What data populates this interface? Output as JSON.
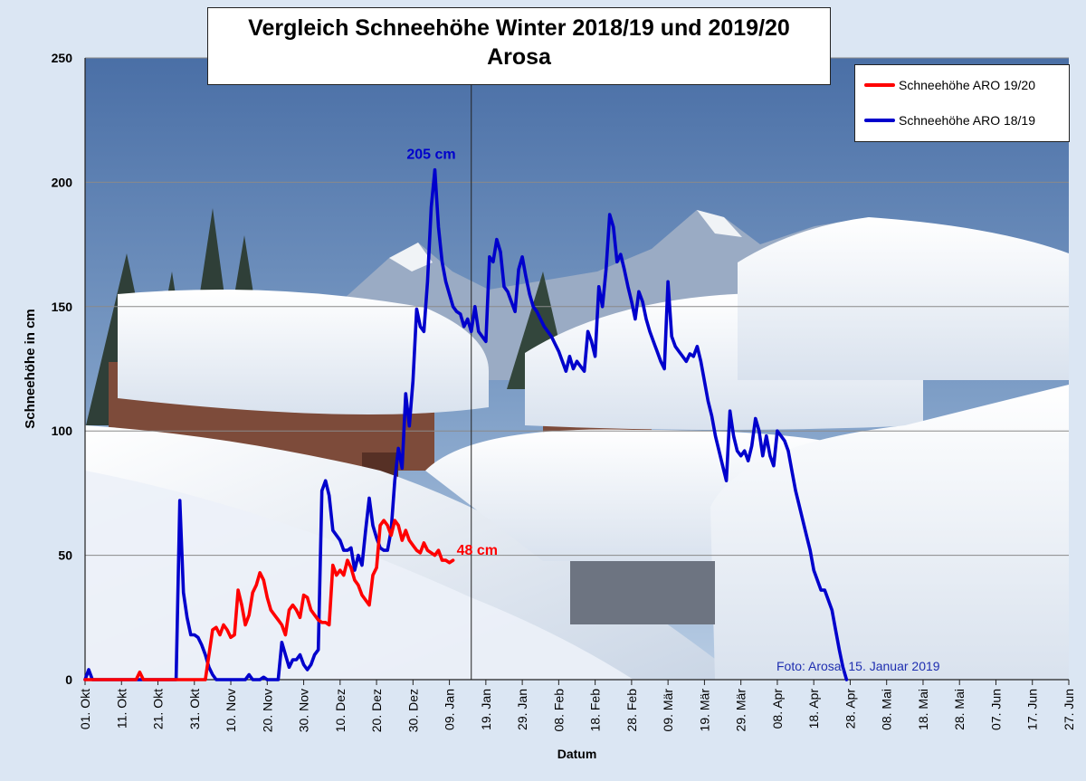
{
  "chart_data": {
    "type": "line",
    "title_lines": [
      "Vergleich Schneehöhe Winter 2018/19 und 2019/20",
      "Arosa"
    ],
    "xlabel": "Datum",
    "ylabel": "Schneehöhe in cm",
    "ylim": [
      0,
      250
    ],
    "yticks": [
      0,
      50,
      100,
      150,
      200,
      250
    ],
    "x_domain_days": [
      0,
      240
    ],
    "x_ticks": [
      {
        "day": 0,
        "label": "01. Okt"
      },
      {
        "day": 10,
        "label": "11. Okt"
      },
      {
        "day": 20,
        "label": "21. Okt"
      },
      {
        "day": 30,
        "label": "31. Okt"
      },
      {
        "day": 40,
        "label": "10. Nov"
      },
      {
        "day": 50,
        "label": "20. Nov"
      },
      {
        "day": 60,
        "label": "30. Nov"
      },
      {
        "day": 70,
        "label": "10. Dez"
      },
      {
        "day": 80,
        "label": "20. Dez"
      },
      {
        "day": 90,
        "label": "30. Dez"
      },
      {
        "day": 100,
        "label": "09. Jan"
      },
      {
        "day": 110,
        "label": "19. Jan"
      },
      {
        "day": 120,
        "label": "29. Jan"
      },
      {
        "day": 130,
        "label": "08. Feb"
      },
      {
        "day": 140,
        "label": "18. Feb"
      },
      {
        "day": 150,
        "label": "28. Feb"
      },
      {
        "day": 160,
        "label": "09. Mär"
      },
      {
        "day": 170,
        "label": "19. Mär"
      },
      {
        "day": 180,
        "label": "29. Mär"
      },
      {
        "day": 190,
        "label": "08. Apr"
      },
      {
        "day": 200,
        "label": "18. Apr"
      },
      {
        "day": 210,
        "label": "28. Apr"
      },
      {
        "day": 220,
        "label": "08. Mai"
      },
      {
        "day": 230,
        "label": "18. Mai"
      },
      {
        "day": 240,
        "label": "28. Mai"
      },
      {
        "day": 250,
        "label": "07. Jun"
      },
      {
        "day": 260,
        "label": "17. Jun"
      },
      {
        "day": 270,
        "label": "27. Jun"
      }
    ],
    "x_range_days": [
      0,
      270
    ],
    "reference_line_day": 106,
    "series": [
      {
        "name": "Schneehöhe ARO 19/20",
        "color": "#ff0000",
        "points": [
          [
            0,
            0
          ],
          [
            14,
            0
          ],
          [
            15,
            3
          ],
          [
            16,
            0
          ],
          [
            26,
            0
          ],
          [
            33,
            0
          ],
          [
            34,
            10
          ],
          [
            35,
            20
          ],
          [
            36,
            21
          ],
          [
            37,
            18
          ],
          [
            38,
            22
          ],
          [
            39,
            20
          ],
          [
            40,
            17
          ],
          [
            41,
            18
          ],
          [
            42,
            36
          ],
          [
            43,
            30
          ],
          [
            44,
            22
          ],
          [
            45,
            26
          ],
          [
            46,
            35
          ],
          [
            47,
            38
          ],
          [
            48,
            43
          ],
          [
            49,
            40
          ],
          [
            50,
            33
          ],
          [
            51,
            28
          ],
          [
            52,
            26
          ],
          [
            53,
            24
          ],
          [
            54,
            22
          ],
          [
            55,
            18
          ],
          [
            56,
            28
          ],
          [
            57,
            30
          ],
          [
            58,
            28
          ],
          [
            59,
            25
          ],
          [
            60,
            34
          ],
          [
            61,
            33
          ],
          [
            62,
            28
          ],
          [
            63,
            26
          ],
          [
            64,
            24
          ],
          [
            65,
            23
          ],
          [
            66,
            23
          ],
          [
            67,
            22
          ],
          [
            68,
            46
          ],
          [
            69,
            42
          ],
          [
            70,
            44
          ],
          [
            71,
            42
          ],
          [
            72,
            48
          ],
          [
            73,
            45
          ],
          [
            74,
            40
          ],
          [
            75,
            38
          ],
          [
            76,
            34
          ],
          [
            77,
            32
          ],
          [
            78,
            30
          ],
          [
            79,
            42
          ],
          [
            80,
            45
          ],
          [
            81,
            62
          ],
          [
            82,
            64
          ],
          [
            83,
            62
          ],
          [
            84,
            58
          ],
          [
            85,
            64
          ],
          [
            86,
            62
          ],
          [
            87,
            56
          ],
          [
            88,
            60
          ],
          [
            89,
            56
          ],
          [
            90,
            54
          ],
          [
            91,
            52
          ],
          [
            92,
            51
          ],
          [
            93,
            55
          ],
          [
            94,
            52
          ],
          [
            95,
            51
          ],
          [
            96,
            50
          ],
          [
            97,
            52
          ],
          [
            98,
            48
          ],
          [
            99,
            48
          ],
          [
            100,
            47
          ],
          [
            101,
            48
          ]
        ],
        "annotation": "48 cm"
      },
      {
        "name": "Schneehöhe ARO 18/19",
        "color": "#0000cc",
        "points": [
          [
            0,
            0
          ],
          [
            1,
            4
          ],
          [
            2,
            0
          ],
          [
            25,
            0
          ],
          [
            26,
            72
          ],
          [
            27,
            35
          ],
          [
            28,
            25
          ],
          [
            29,
            18
          ],
          [
            30,
            18
          ],
          [
            31,
            17
          ],
          [
            32,
            14
          ],
          [
            33,
            10
          ],
          [
            34,
            5
          ],
          [
            35,
            2
          ],
          [
            36,
            0
          ],
          [
            44,
            0
          ],
          [
            45,
            2
          ],
          [
            46,
            0
          ],
          [
            48,
            0
          ],
          [
            49,
            1
          ],
          [
            50,
            0
          ],
          [
            53,
            0
          ],
          [
            54,
            15
          ],
          [
            55,
            10
          ],
          [
            56,
            5
          ],
          [
            57,
            8
          ],
          [
            58,
            8
          ],
          [
            59,
            10
          ],
          [
            60,
            6
          ],
          [
            61,
            4
          ],
          [
            62,
            6
          ],
          [
            63,
            10
          ],
          [
            64,
            12
          ],
          [
            65,
            76
          ],
          [
            66,
            80
          ],
          [
            67,
            74
          ],
          [
            68,
            60
          ],
          [
            69,
            58
          ],
          [
            70,
            56
          ],
          [
            71,
            52
          ],
          [
            72,
            52
          ],
          [
            73,
            53
          ],
          [
            74,
            44
          ],
          [
            75,
            50
          ],
          [
            76,
            46
          ],
          [
            77,
            60
          ],
          [
            78,
            73
          ],
          [
            79,
            62
          ],
          [
            80,
            57
          ],
          [
            81,
            53
          ],
          [
            82,
            52
          ],
          [
            83,
            52
          ],
          [
            84,
            60
          ],
          [
            85,
            80
          ],
          [
            86,
            93
          ],
          [
            87,
            85
          ],
          [
            88,
            115
          ],
          [
            89,
            102
          ],
          [
            90,
            120
          ],
          [
            91,
            149
          ],
          [
            92,
            142
          ],
          [
            93,
            140
          ],
          [
            94,
            160
          ],
          [
            95,
            190
          ],
          [
            96,
            205
          ],
          [
            97,
            182
          ],
          [
            98,
            168
          ],
          [
            99,
            160
          ],
          [
            100,
            155
          ],
          [
            101,
            150
          ],
          [
            102,
            148
          ],
          [
            103,
            147
          ],
          [
            104,
            142
          ],
          [
            105,
            145
          ],
          [
            106,
            140
          ],
          [
            107,
            150
          ],
          [
            108,
            140
          ],
          [
            109,
            138
          ],
          [
            110,
            136
          ],
          [
            111,
            170
          ],
          [
            112,
            168
          ],
          [
            113,
            177
          ],
          [
            114,
            172
          ],
          [
            115,
            158
          ],
          [
            116,
            156
          ],
          [
            117,
            152
          ],
          [
            118,
            148
          ],
          [
            119,
            165
          ],
          [
            120,
            170
          ],
          [
            121,
            162
          ],
          [
            122,
            155
          ],
          [
            123,
            150
          ],
          [
            124,
            148
          ],
          [
            125,
            145
          ],
          [
            126,
            142
          ],
          [
            127,
            140
          ],
          [
            128,
            138
          ],
          [
            129,
            135
          ],
          [
            130,
            132
          ],
          [
            131,
            128
          ],
          [
            132,
            124
          ],
          [
            133,
            130
          ],
          [
            134,
            125
          ],
          [
            135,
            128
          ],
          [
            136,
            126
          ],
          [
            137,
            124
          ],
          [
            138,
            140
          ],
          [
            139,
            136
          ],
          [
            140,
            130
          ],
          [
            141,
            158
          ],
          [
            142,
            150
          ],
          [
            143,
            165
          ],
          [
            144,
            187
          ],
          [
            145,
            182
          ],
          [
            146,
            168
          ],
          [
            147,
            171
          ],
          [
            148,
            165
          ],
          [
            149,
            158
          ],
          [
            150,
            152
          ],
          [
            151,
            145
          ],
          [
            152,
            156
          ],
          [
            153,
            152
          ],
          [
            154,
            145
          ],
          [
            155,
            140
          ],
          [
            156,
            136
          ],
          [
            157,
            132
          ],
          [
            158,
            128
          ],
          [
            159,
            125
          ],
          [
            160,
            160
          ],
          [
            161,
            138
          ],
          [
            162,
            134
          ],
          [
            163,
            132
          ],
          [
            164,
            130
          ],
          [
            165,
            128
          ],
          [
            166,
            131
          ],
          [
            167,
            130
          ],
          [
            168,
            134
          ],
          [
            169,
            128
          ],
          [
            170,
            120
          ],
          [
            171,
            112
          ],
          [
            172,
            106
          ],
          [
            173,
            98
          ],
          [
            174,
            92
          ],
          [
            175,
            86
          ],
          [
            176,
            80
          ],
          [
            177,
            108
          ],
          [
            178,
            98
          ],
          [
            179,
            92
          ],
          [
            180,
            90
          ],
          [
            181,
            92
          ],
          [
            182,
            88
          ],
          [
            183,
            94
          ],
          [
            184,
            105
          ],
          [
            185,
            100
          ],
          [
            186,
            90
          ],
          [
            187,
            98
          ],
          [
            188,
            90
          ],
          [
            189,
            86
          ],
          [
            190,
            100
          ],
          [
            191,
            98
          ],
          [
            192,
            96
          ],
          [
            193,
            92
          ],
          [
            194,
            84
          ],
          [
            195,
            76
          ],
          [
            196,
            70
          ],
          [
            197,
            64
          ],
          [
            198,
            58
          ],
          [
            199,
            52
          ],
          [
            200,
            44
          ],
          [
            201,
            40
          ],
          [
            202,
            36
          ],
          [
            203,
            36
          ],
          [
            204,
            32
          ],
          [
            205,
            28
          ],
          [
            206,
            20
          ],
          [
            207,
            12
          ],
          [
            208,
            5
          ],
          [
            209,
            0
          ]
        ],
        "annotation": "205 cm"
      }
    ],
    "photo_credit": "Foto: Arosa, 15. Januar 2019",
    "grid": true,
    "legend_position": "top-right"
  },
  "colors": {
    "background": "#dbe6f3",
    "sky_top": "#4c71a8",
    "sky_bottom": "#a9c2dd",
    "snow": "#f4f7fb"
  }
}
